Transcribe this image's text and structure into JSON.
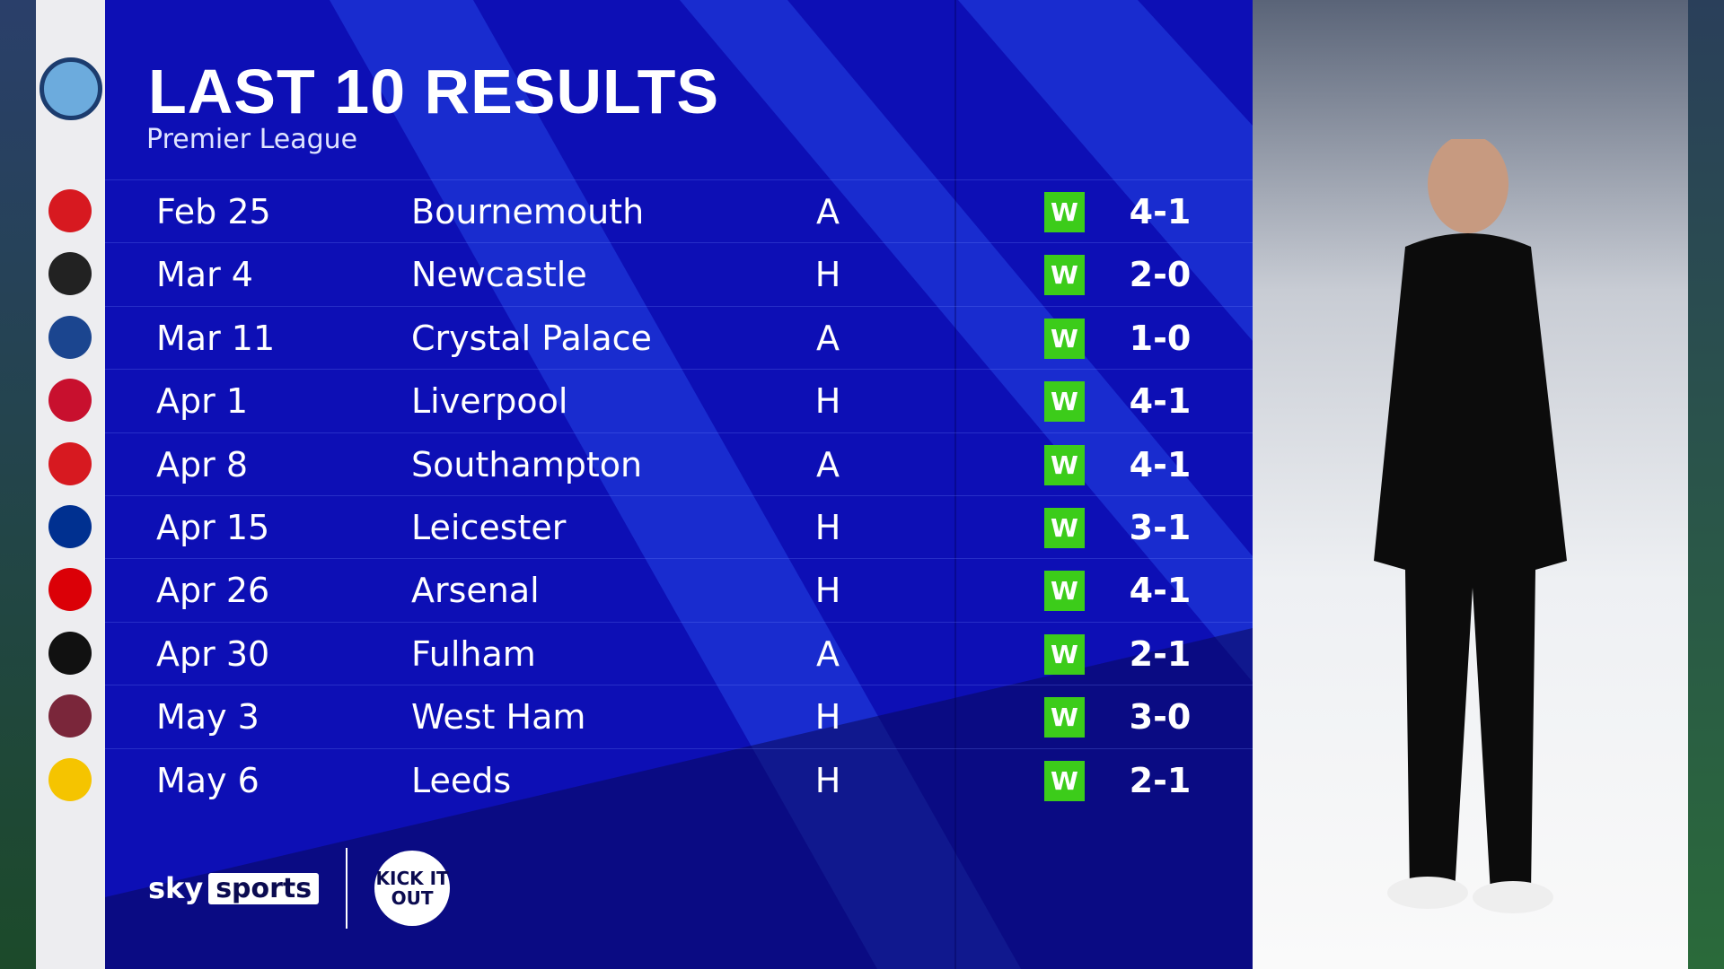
{
  "header": {
    "title": "LAST 10 RESULTS",
    "subtitle": "Premier League",
    "team_crest": "manchester-city-crest"
  },
  "results": [
    {
      "date": "Feb 25",
      "opponent": "Bournemouth",
      "venue": "A",
      "outcome": "W",
      "score": "4-1",
      "crest_color": "#d71920"
    },
    {
      "date": "Mar 4",
      "opponent": "Newcastle",
      "venue": "H",
      "outcome": "W",
      "score": "2-0",
      "crest_color": "#222222"
    },
    {
      "date": "Mar 11",
      "opponent": "Crystal Palace",
      "venue": "A",
      "outcome": "W",
      "score": "1-0",
      "crest_color": "#1b458f"
    },
    {
      "date": "Apr 1",
      "opponent": "Liverpool",
      "venue": "H",
      "outcome": "W",
      "score": "4-1",
      "crest_color": "#c8102e"
    },
    {
      "date": "Apr 8",
      "opponent": "Southampton",
      "venue": "A",
      "outcome": "W",
      "score": "4-1",
      "crest_color": "#d71920"
    },
    {
      "date": "Apr 15",
      "opponent": "Leicester",
      "venue": "H",
      "outcome": "W",
      "score": "3-1",
      "crest_color": "#003090"
    },
    {
      "date": "Apr 26",
      "opponent": "Arsenal",
      "venue": "H",
      "outcome": "W",
      "score": "4-1",
      "crest_color": "#db0007"
    },
    {
      "date": "Apr 30",
      "opponent": "Fulham",
      "venue": "A",
      "outcome": "W",
      "score": "2-1",
      "crest_color": "#111111"
    },
    {
      "date": "May 3",
      "opponent": "West Ham",
      "venue": "H",
      "outcome": "W",
      "score": "3-0",
      "crest_color": "#7a263a"
    },
    {
      "date": "May 6",
      "opponent": "Leeds",
      "venue": "H",
      "outcome": "W",
      "score": "2-1",
      "crest_color": "#f5c400"
    }
  ],
  "colors": {
    "panel": "#0d0fb5",
    "win": "#3ccc1a"
  },
  "footer": {
    "brand_sky": "sky",
    "brand_sports": "sports",
    "partner_logo": "KICK IT OUT"
  }
}
